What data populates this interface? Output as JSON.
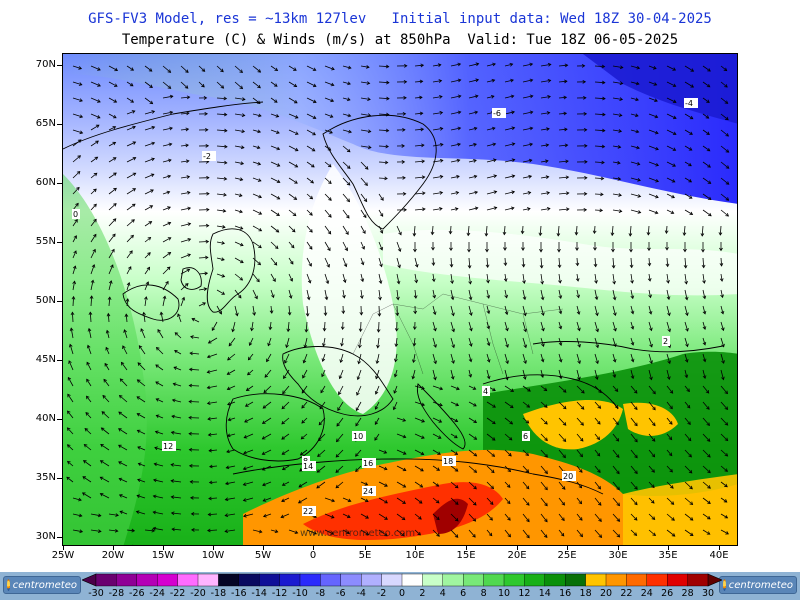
{
  "header": {
    "title_line1": "GFS-FV3 Model, res = ~13km 127lev   Initial input data: Wed 18Z 30-04-2025",
    "title_line2": "Temperature (C) & Winds (m/s) at 850hPa  Valid: Tue 18Z 06-05-2025"
  },
  "map": {
    "lat_labels": [
      "70N",
      "65N",
      "60N",
      "55N",
      "50N",
      "45N",
      "40N",
      "35N",
      "30N"
    ],
    "lon_labels": [
      "25W",
      "20W",
      "15W",
      "10W",
      "5W",
      "0",
      "5E",
      "10E",
      "15E",
      "20E",
      "25E",
      "30E",
      "35E",
      "40E"
    ],
    "watermark": "www.centrometeo.com",
    "contour_labels": [
      "-6",
      "-4",
      "-2",
      "0",
      "2",
      "4",
      "6",
      "8",
      "10",
      "12",
      "14",
      "16",
      "18",
      "20",
      "22",
      "24"
    ]
  },
  "legend": {
    "values": [
      "-30",
      "-28",
      "-26",
      "-24",
      "-22",
      "-20",
      "-18",
      "-16",
      "-14",
      "-12",
      "-10",
      "-8",
      "-6",
      "-4",
      "-2",
      "0",
      "2",
      "4",
      "6",
      "8",
      "10",
      "12",
      "14",
      "16",
      "18",
      "20",
      "22",
      "24",
      "26",
      "28",
      "30"
    ],
    "colors": [
      "#4b0049",
      "#6a0070",
      "#8f0096",
      "#b400b6",
      "#d400d0",
      "#ff6bff",
      "#ffb4ff",
      "#050525",
      "#0a0a60",
      "#0f0f98",
      "#1a1ad0",
      "#2a2afc",
      "#6565ff",
      "#8c8cff",
      "#b0b0ff",
      "#d8d8ff",
      "#ffffff",
      "#c8ffc8",
      "#a0f5a0",
      "#78e878",
      "#50d850",
      "#2ec82e",
      "#18b018",
      "#0a900a",
      "#087008",
      "#ffc400",
      "#ff9600",
      "#ff6a00",
      "#ff3000",
      "#e00000",
      "#a00000",
      "#600000"
    ],
    "logo_left_text": "centrometeo",
    "logo_right_text": "centrometeo"
  }
}
